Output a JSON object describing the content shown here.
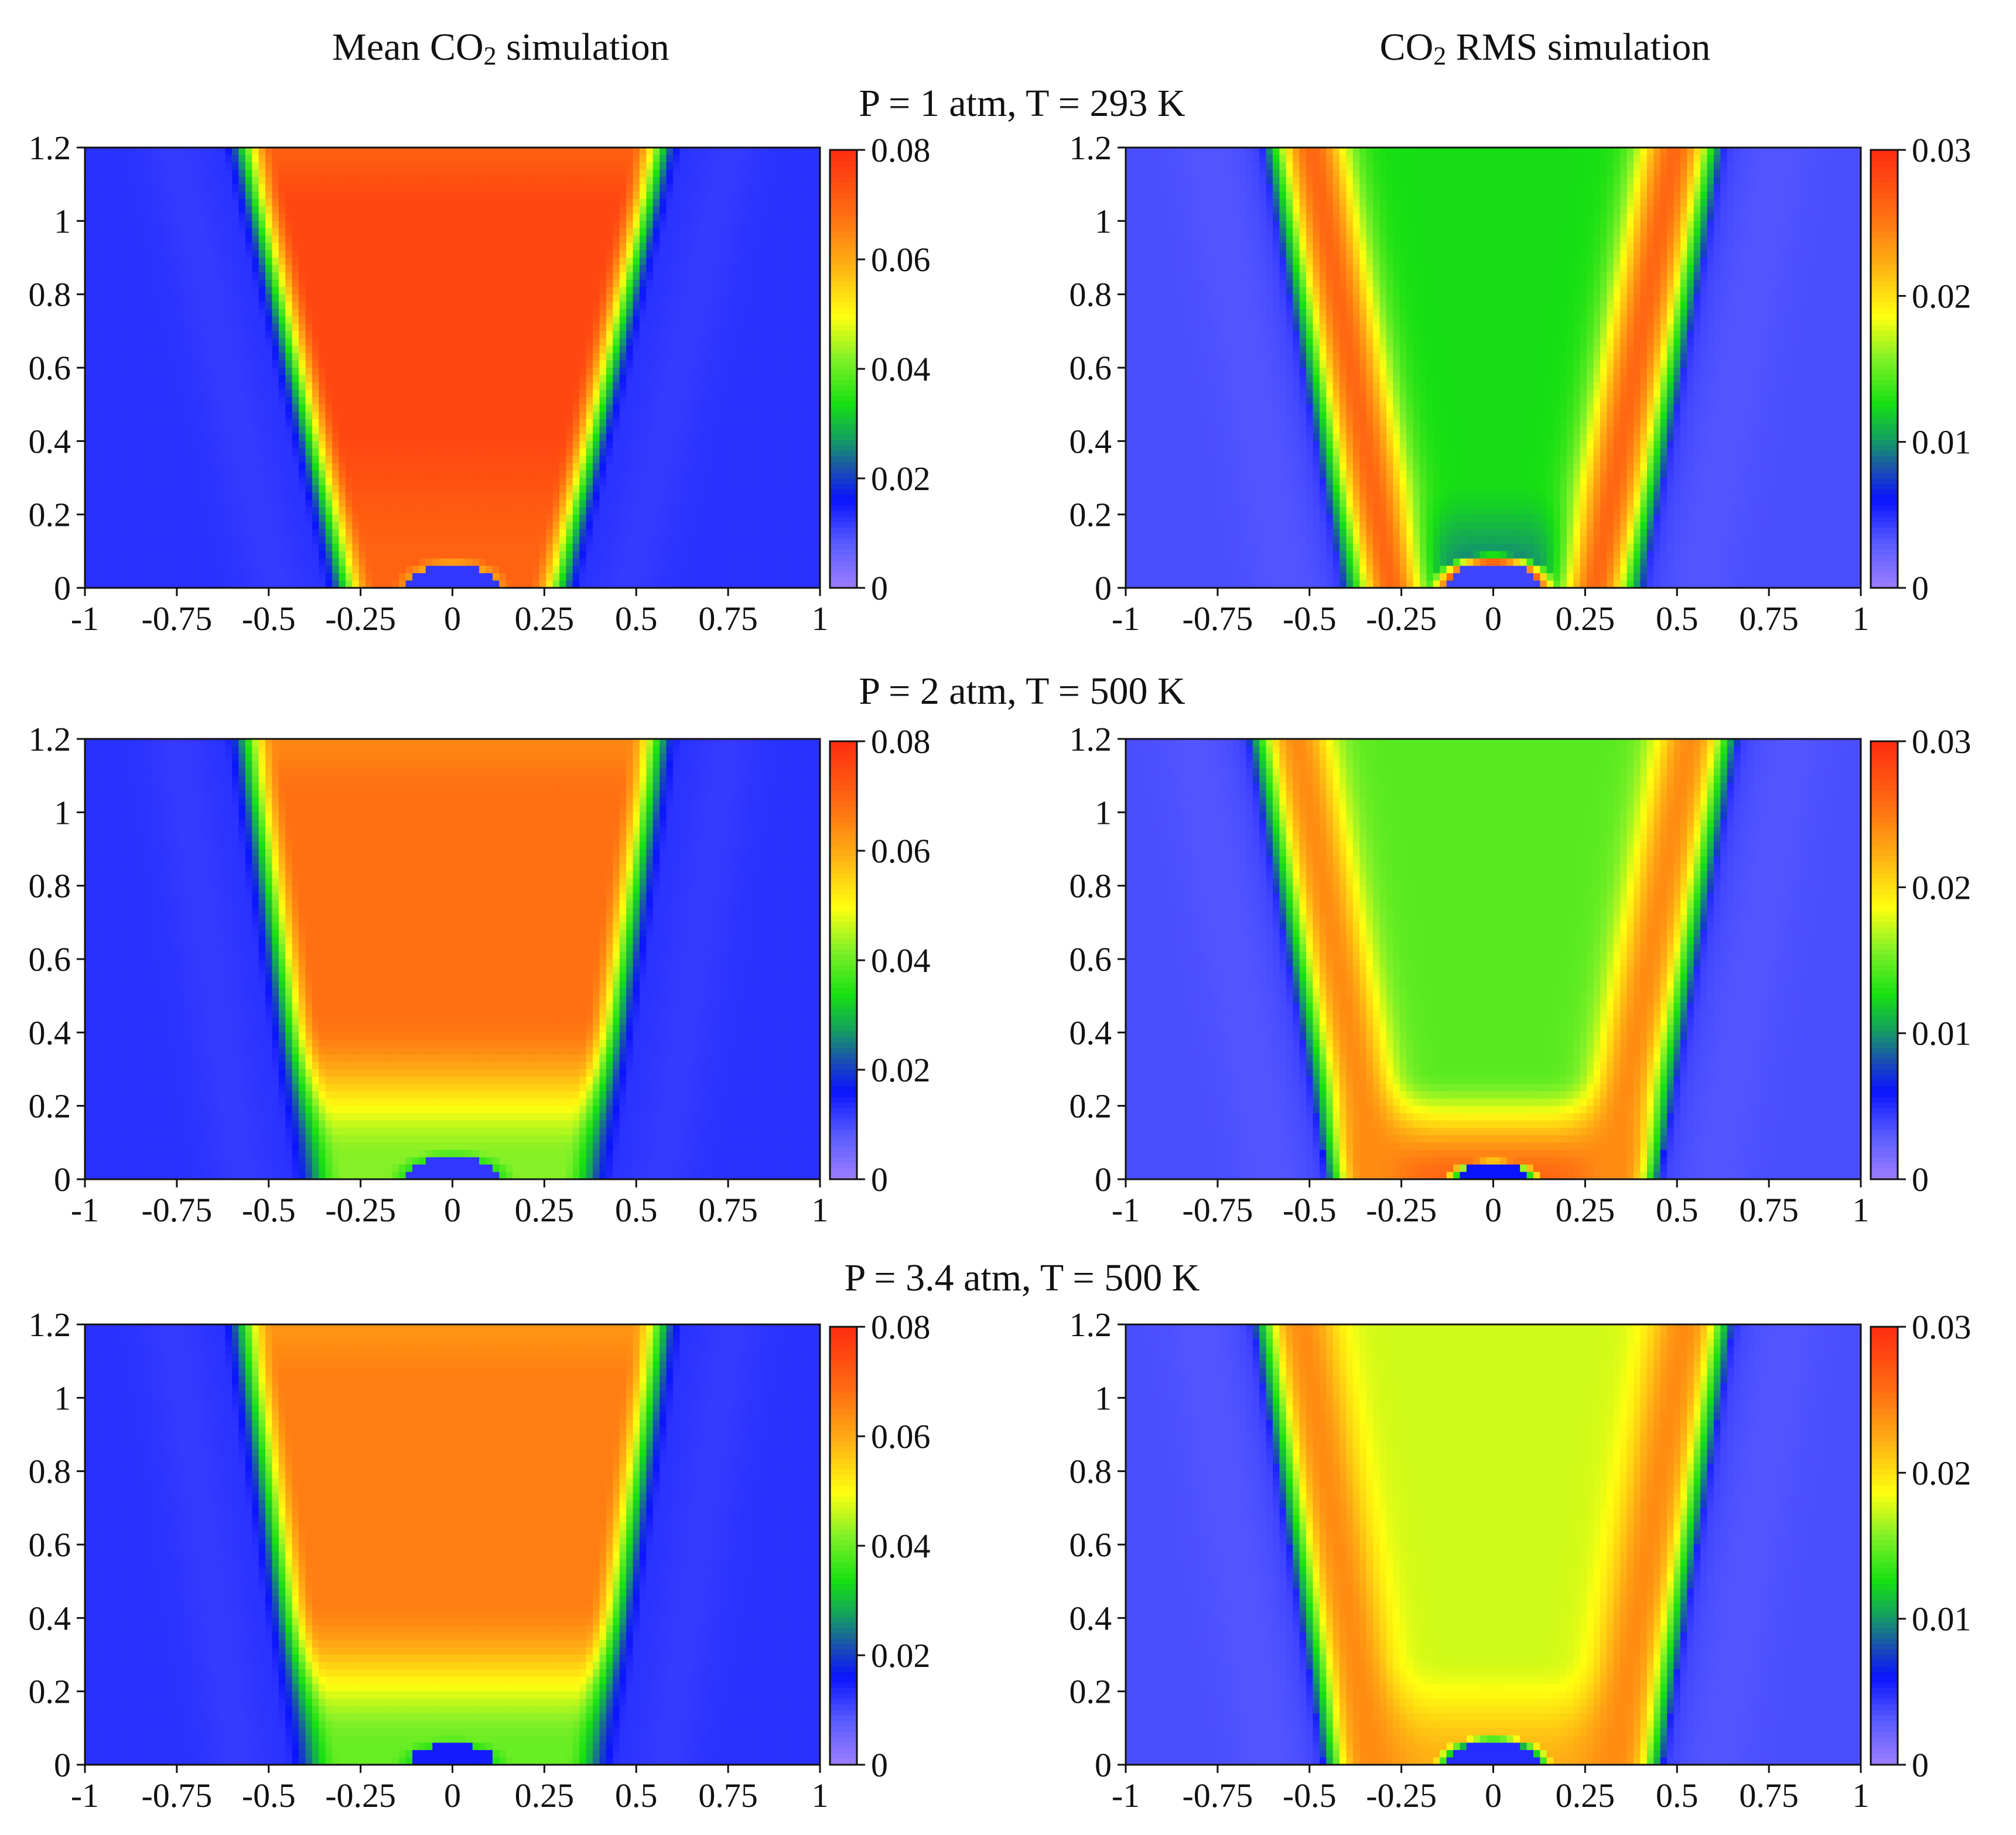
{
  "figure": {
    "column_titles": {
      "left": {
        "pre": "Mean CO",
        "sub": "2",
        "post": " simulation"
      },
      "right": {
        "pre": "CO",
        "sub": "2",
        "post": " RMS simulation"
      }
    },
    "row_titles": [
      "P = 1 atm, T = 293 K",
      "P = 2 atm, T = 500 K",
      "P = 3.4 atm, T = 500 K"
    ]
  },
  "colormap": {
    "name": "rainbow",
    "stops": [
      {
        "t": 0.0,
        "color": "#9b7dff"
      },
      {
        "t": 0.1,
        "color": "#5a5cff"
      },
      {
        "t": 0.2,
        "color": "#0a14ff"
      },
      {
        "t": 0.27,
        "color": "#1a4fb0"
      },
      {
        "t": 0.34,
        "color": "#14a060"
      },
      {
        "t": 0.42,
        "color": "#16e012"
      },
      {
        "t": 0.52,
        "color": "#7ef028"
      },
      {
        "t": 0.62,
        "color": "#ffff10"
      },
      {
        "t": 0.74,
        "color": "#ffae14"
      },
      {
        "t": 0.86,
        "color": "#ff6a12"
      },
      {
        "t": 1.0,
        "color": "#ff2c10"
      }
    ]
  },
  "chart_data": [
    {
      "type": "heatmap",
      "id": "mean-p1",
      "title": "P = 1 atm, T = 293 K",
      "quantity": "Mean CO2",
      "x_ticks": [
        "-1",
        "-0.75",
        "-0.5",
        "-0.25",
        "0",
        "0.25",
        "0.5",
        "0.75",
        "1"
      ],
      "y_ticks": [
        "0",
        "0.2",
        "0.4",
        "0.6",
        "0.8",
        "1",
        "1.2"
      ],
      "xlim": [
        -1,
        1
      ],
      "ylim": [
        0,
        1.2
      ],
      "colorbar_ticks": [
        "0",
        "0.02",
        "0.04",
        "0.06",
        "0.08"
      ],
      "clim": [
        0,
        0.08
      ],
      "field": {
        "kind": "mean",
        "w0": 0.28,
        "slope": 0.23,
        "width": 0.075,
        "core": 0.075,
        "lower": 0.07,
        "cap": 0.065,
        "bump_r": 0.12,
        "bump_h": 0.065,
        "bump_val": 0.012,
        "ring_val": 0.06
      }
    },
    {
      "type": "heatmap",
      "id": "rms-p1",
      "title": "P = 1 atm, T = 293 K",
      "quantity": "CO2 RMS",
      "x_ticks": [
        "-1",
        "-0.75",
        "-0.5",
        "-0.25",
        "0",
        "0.25",
        "0.5",
        "0.75",
        "1"
      ],
      "y_ticks": [
        "0",
        "0.2",
        "0.4",
        "0.6",
        "0.8",
        "1",
        "1.2"
      ],
      "xlim": [
        -1,
        1
      ],
      "ylim": [
        0,
        1.2
      ],
      "colorbar_ticks": [
        "0",
        "0.01",
        "0.02",
        "0.03"
      ],
      "clim": [
        0,
        0.03
      ],
      "field": {
        "kind": "rms",
        "w0": 0.36,
        "slope": 0.18,
        "width": 0.075,
        "edge": 0.026,
        "core": 0.0125,
        "core_bottom": 0.009,
        "bump_r": 0.13,
        "bump_h": 0.07,
        "bump_val": 0.004,
        "ring_val": 0.026
      }
    },
    {
      "type": "heatmap",
      "id": "mean-p2",
      "title": "P = 2 atm, T = 500 K",
      "quantity": "Mean CO2",
      "x_ticks": [
        "-1",
        "-0.75",
        "-0.5",
        "-0.25",
        "0",
        "0.25",
        "0.5",
        "0.75",
        "1"
      ],
      "y_ticks": [
        "0",
        "0.2",
        "0.4",
        "0.6",
        "0.8",
        "1",
        "1.2"
      ],
      "xlim": [
        -1,
        1
      ],
      "ylim": [
        0,
        1.2
      ],
      "colorbar_ticks": [
        "0",
        "0.02",
        "0.04",
        "0.06",
        "0.08"
      ],
      "clim": [
        0,
        0.08
      ],
      "field": {
        "kind": "mean",
        "w0": 0.37,
        "slope": 0.15,
        "width": 0.075,
        "core": 0.068,
        "lower": 0.042,
        "cap": 0.06,
        "bump_r": 0.13,
        "bump_h": 0.06,
        "bump_val": 0.012,
        "ring_val": 0.035
      }
    },
    {
      "type": "heatmap",
      "id": "rms-p2",
      "title": "P = 2 atm, T = 500 K",
      "quantity": "CO2 RMS",
      "x_ticks": [
        "-1",
        "-0.75",
        "-0.5",
        "-0.25",
        "0",
        "0.25",
        "0.5",
        "0.75",
        "1"
      ],
      "y_ticks": [
        "0",
        "0.2",
        "0.4",
        "0.6",
        "0.8",
        "1",
        "1.2"
      ],
      "xlim": [
        -1,
        1
      ],
      "ylim": [
        0,
        1.2
      ],
      "colorbar_ticks": [
        "0",
        "0.01",
        "0.02",
        "0.03"
      ],
      "clim": [
        0,
        0.03
      ],
      "field": {
        "kind": "rms",
        "w0": 0.4,
        "slope": 0.18,
        "width": 0.075,
        "edge": 0.024,
        "core": 0.0145,
        "core_bottom": 0.026,
        "bump_r": 0.1,
        "bump_h": 0.04,
        "bump_val": 0.006,
        "ring_val": 0.012
      }
    },
    {
      "type": "heatmap",
      "id": "mean-p3",
      "title": "P = 3.4 atm, T = 500 K",
      "quantity": "Mean CO2",
      "x_ticks": [
        "-1",
        "-0.75",
        "-0.5",
        "-0.25",
        "0",
        "0.25",
        "0.5",
        "0.75",
        "1"
      ],
      "y_ticks": [
        "0",
        "0.2",
        "0.4",
        "0.6",
        "0.8",
        "1",
        "1.2"
      ],
      "xlim": [
        -1,
        1
      ],
      "ylim": [
        0,
        1.2
      ],
      "colorbar_ticks": [
        "0",
        "0.02",
        "0.04",
        "0.06",
        "0.08"
      ],
      "clim": [
        0,
        0.08
      ],
      "field": {
        "kind": "mean",
        "w0": 0.38,
        "slope": 0.15,
        "width": 0.075,
        "core": 0.066,
        "lower": 0.04,
        "cap": 0.058,
        "bump_r": 0.12,
        "bump_h": 0.055,
        "bump_val": 0.015,
        "ring_val": 0.035
      }
    },
    {
      "type": "heatmap",
      "id": "rms-p3",
      "title": "P = 3.4 atm, T = 500 K",
      "quantity": "CO2 RMS",
      "x_ticks": [
        "-1",
        "-0.75",
        "-0.5",
        "-0.25",
        "0",
        "0.25",
        "0.5",
        "0.75",
        "1"
      ],
      "y_ticks": [
        "0",
        "0.2",
        "0.4",
        "0.6",
        "0.8",
        "1",
        "1.2"
      ],
      "xlim": [
        -1,
        1
      ],
      "ylim": [
        0,
        1.2
      ],
      "colorbar_ticks": [
        "0",
        "0.01",
        "0.02",
        "0.03"
      ],
      "clim": [
        0,
        0.03
      ],
      "field": {
        "kind": "rms",
        "w0": 0.41,
        "slope": 0.16,
        "width": 0.075,
        "edge": 0.024,
        "core": 0.0175,
        "core_bottom": 0.022,
        "bump_r": 0.12,
        "bump_h": 0.06,
        "bump_val": 0.005,
        "ring_val": 0.008
      }
    }
  ]
}
